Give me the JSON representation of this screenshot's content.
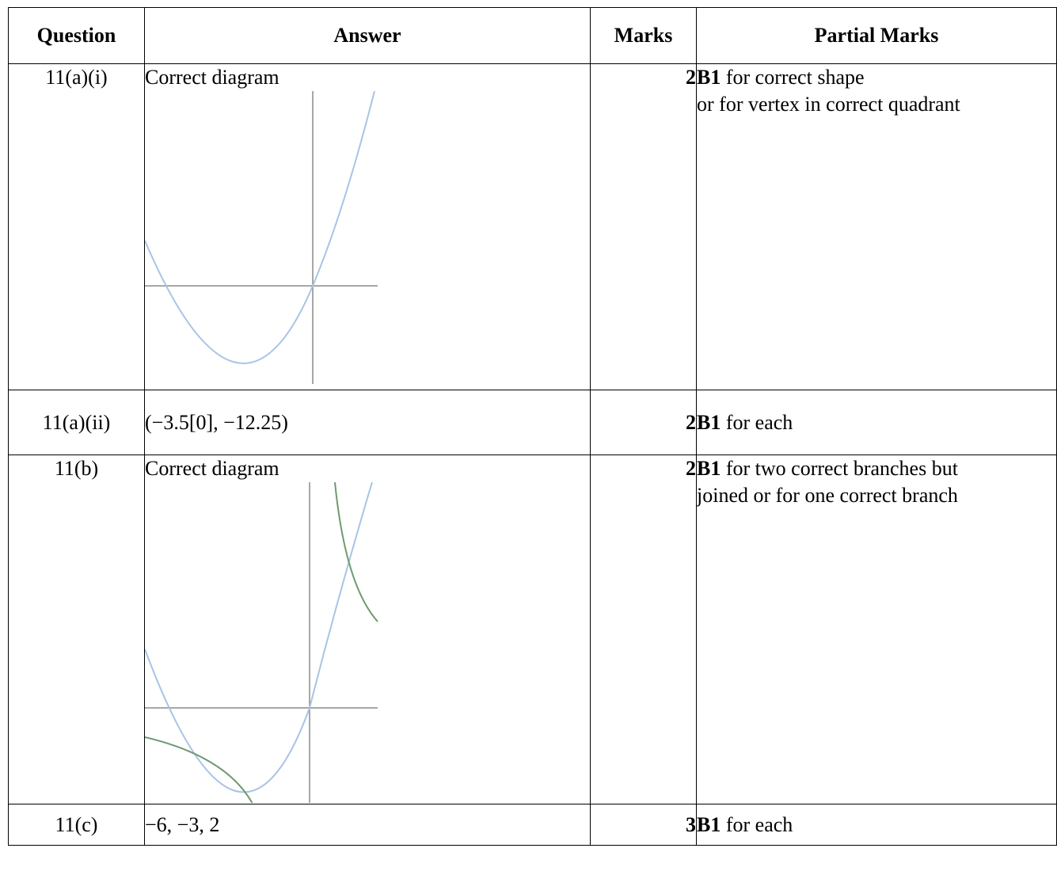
{
  "headers": {
    "question": "Question",
    "answer": "Answer",
    "marks": "Marks",
    "partial": "Partial Marks"
  },
  "rows": [
    {
      "question": "11(a)(i)",
      "answer": "Correct diagram",
      "marks": "2",
      "partial_bold": "B1",
      "partial_line1": " for correct shape",
      "partial_line2": "or for vertex in correct quadrant"
    },
    {
      "question": "11(a)(ii)",
      "answer": "(−3.5[0], −12.25)",
      "marks": "2",
      "partial_bold": "B1",
      "partial_line1": " for each"
    },
    {
      "question": "11(b)",
      "answer": "Correct diagram",
      "marks": "2",
      "partial_bold": "B1",
      "partial_line1": " for two correct branches but",
      "partial_line2": "joined or for one correct branch"
    },
    {
      "question": "11(c)",
      "answer": "−6, −3, 2",
      "marks": "3",
      "partial_bold": "B1",
      "partial_line1": " for each"
    }
  ],
  "colors": {
    "axis": "#8a8a8a",
    "parabola": "#a8c4e6",
    "hyperbola": "#6f9a6f"
  }
}
